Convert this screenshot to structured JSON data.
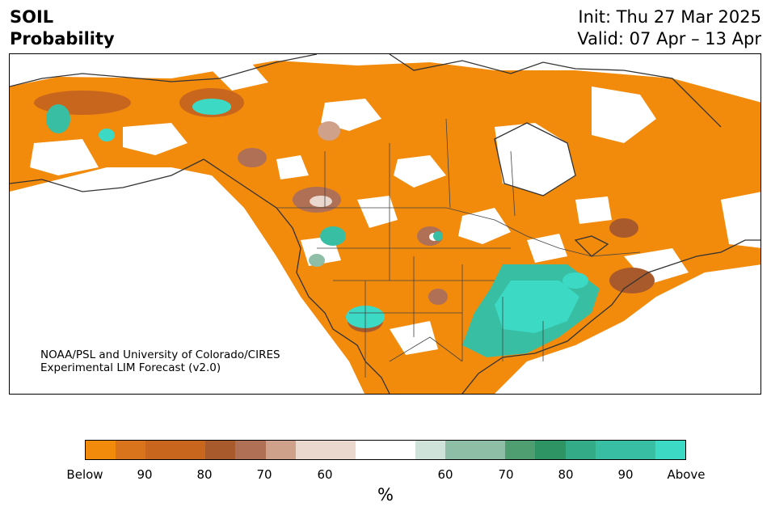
{
  "header": {
    "title_line1": "SOIL",
    "title_line2": "Probability",
    "init_text": "Init: Thu 27 Mar 2025",
    "valid_text": "Valid: 07 Apr – 13 Apr"
  },
  "map": {
    "credit_line1": "NOAA/PSL and University of Colorado/CIRES",
    "credit_line2": "Experimental LIM Forecast (v2.0)"
  },
  "colorbar": {
    "unit_label": "%",
    "ticks": [
      "Below",
      "90",
      "80",
      "70",
      "60",
      "60",
      "70",
      "80",
      "90",
      "Above"
    ],
    "colors": [
      "#f28a0c",
      "#d9731c",
      "#c9661e",
      "#c9661e",
      "#a95a2c",
      "#b07055",
      "#cfa08a",
      "#ead8cf",
      "#ead8cf",
      "#ffffff",
      "#ffffff",
      "#cfe3da",
      "#8fbea6",
      "#8fbea6",
      "#4f9e72",
      "#2f9464",
      "#32ab86",
      "#38bfa3",
      "#38bfa3",
      "#3cd9c4"
    ]
  }
}
